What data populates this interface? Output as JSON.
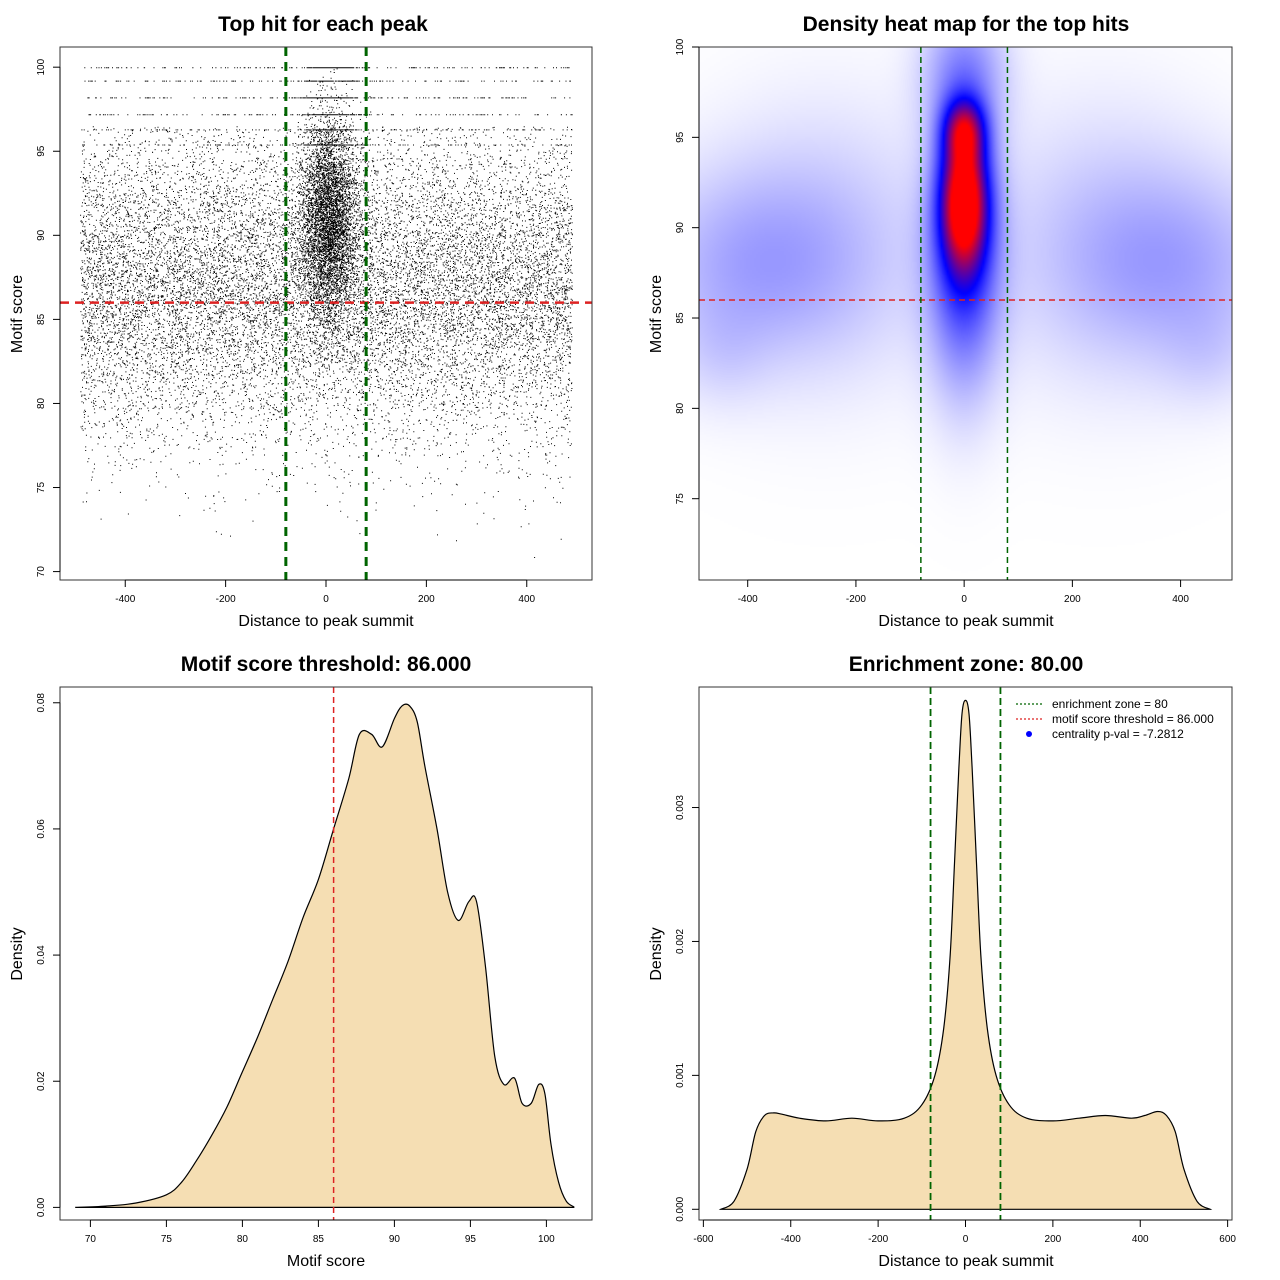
{
  "chart_data": [
    {
      "id": "scatter",
      "type": "scatter",
      "title": "Top hit for each peak",
      "xlabel": "Distance to peak summit",
      "ylabel": "Motif score",
      "xlim": [
        -530,
        530
      ],
      "ylim": [
        69.5,
        101.2
      ],
      "xticks": [
        -400,
        -200,
        0,
        200,
        400
      ],
      "yticks": [
        70,
        75,
        80,
        85,
        90,
        95,
        100
      ],
      "threshold_y": 86,
      "zone_x": [
        -80,
        80
      ],
      "threshold_color": "#dd2222",
      "zone_color": "#006400",
      "point_color": "#000000",
      "points": {
        "n_background": 16000,
        "background_x_range": [
          -490,
          490
        ],
        "n_central": 6000,
        "central_x_center": 5,
        "central_x_spread": 28,
        "score_levels": [
          100,
          99.2,
          98.2,
          97.2,
          96.3,
          95.4
        ]
      }
    },
    {
      "id": "heatmap",
      "type": "heatmap",
      "title": "Density heat map for the top hits",
      "xlabel": "Distance to peak summit",
      "ylabel": "Motif score",
      "xlim": [
        -490,
        495
      ],
      "ylim": [
        70.5,
        100
      ],
      "xticks": [
        -400,
        -200,
        0,
        200,
        400
      ],
      "yticks": [
        75,
        80,
        85,
        90,
        95,
        100
      ],
      "threshold_y": 86,
      "zone_x": [
        -80,
        80
      ],
      "threshold_color": "#dd2222",
      "zone_color": "#006400",
      "colors": [
        "#ffffff",
        "#0000ff",
        "#ff0000"
      ],
      "blobs": [
        {
          "x": 0,
          "y": 91.5,
          "sx": 30,
          "sy": 2.6,
          "w": 1.0
        },
        {
          "x": 0,
          "y": 95.4,
          "sx": 26,
          "sy": 1.2,
          "w": 0.55
        },
        {
          "x": 0,
          "y": 88,
          "sx": 45,
          "sy": 4.5,
          "w": 0.35
        },
        {
          "x": 0,
          "y": 98.5,
          "sx": 50,
          "sy": 2.5,
          "w": 0.2
        },
        {
          "x": -400,
          "y": 88,
          "sx": 130,
          "sy": 3.5,
          "w": 0.12
        },
        {
          "x": 400,
          "y": 88,
          "sx": 130,
          "sy": 3.5,
          "w": 0.12
        },
        {
          "x": -250,
          "y": 89,
          "sx": 140,
          "sy": 5,
          "w": 0.08
        },
        {
          "x": 250,
          "y": 89,
          "sx": 140,
          "sy": 5,
          "w": 0.08
        },
        {
          "x": -450,
          "y": 83,
          "sx": 60,
          "sy": 2,
          "w": 0.04
        },
        {
          "x": 450,
          "y": 83,
          "sx": 60,
          "sy": 2,
          "w": 0.04
        }
      ]
    },
    {
      "id": "score-density",
      "type": "area",
      "title": "Motif score threshold: 86.000",
      "xlabel": "Motif score",
      "ylabel": "Density",
      "xlim": [
        68,
        103
      ],
      "ylim": [
        -0.002,
        0.0825
      ],
      "xticks": [
        70,
        75,
        80,
        85,
        90,
        95,
        100
      ],
      "yticks": [
        0.0,
        0.02,
        0.04,
        0.06,
        0.08
      ],
      "ytick_labels": [
        "0.00",
        "0.02",
        "0.04",
        "0.06",
        "0.08"
      ],
      "threshold_x": 86,
      "threshold_color": "#dd2222",
      "fill_color": "#f5deb3",
      "x": [
        69,
        71,
        73,
        75,
        76,
        77,
        78,
        79,
        80,
        81,
        82,
        83,
        84,
        85,
        86,
        87,
        87.7,
        88.5,
        89.2,
        90,
        90.5,
        91,
        91.5,
        92,
        92.8,
        93.5,
        94.2,
        94.9,
        95.4,
        96,
        96.6,
        97.2,
        97.9,
        98.4,
        99,
        99.5,
        99.9,
        100.3,
        100.8,
        101.3,
        101.8
      ],
      "y": [
        0.0,
        0.0002,
        0.0007,
        0.002,
        0.004,
        0.0075,
        0.0115,
        0.016,
        0.0215,
        0.027,
        0.033,
        0.039,
        0.046,
        0.052,
        0.06,
        0.068,
        0.075,
        0.075,
        0.073,
        0.0775,
        0.0795,
        0.0795,
        0.077,
        0.07,
        0.06,
        0.05,
        0.0455,
        0.0485,
        0.0485,
        0.038,
        0.024,
        0.0195,
        0.0205,
        0.0165,
        0.0165,
        0.0195,
        0.018,
        0.01,
        0.004,
        0.001,
        0.0001
      ]
    },
    {
      "id": "distance-density",
      "type": "area",
      "title": "Enrichment zone: 80.00",
      "xlabel": "Distance to peak summit",
      "ylabel": "Density",
      "xlim": [
        -610,
        610
      ],
      "ylim": [
        -8e-05,
        0.0039
      ],
      "xticks": [
        -600,
        -400,
        -200,
        0,
        200,
        400,
        600
      ],
      "yticks": [
        0.0,
        0.001,
        0.002,
        0.003
      ],
      "ytick_labels": [
        "0.000",
        "0.001",
        "0.002",
        "0.003"
      ],
      "zone_x": [
        -80,
        80
      ],
      "zone_color": "#006400",
      "fill_color": "#f5deb3",
      "x": [
        -560,
        -530,
        -500,
        -480,
        -460,
        -440,
        -420,
        -380,
        -320,
        -260,
        -200,
        -140,
        -100,
        -70,
        -50,
        -35,
        -25,
        -15,
        -8,
        0,
        8,
        15,
        25,
        35,
        50,
        70,
        100,
        140,
        200,
        260,
        320,
        380,
        410,
        440,
        460,
        480,
        500,
        530,
        560
      ],
      "y": [
        0.0,
        6e-05,
        0.0003,
        0.00058,
        0.0007,
        0.00072,
        0.00071,
        0.00068,
        0.00066,
        0.00068,
        0.00066,
        0.00068,
        0.00078,
        0.001,
        0.00135,
        0.0019,
        0.0026,
        0.0033,
        0.0037,
        0.0038,
        0.0037,
        0.0033,
        0.0026,
        0.0019,
        0.00135,
        0.001,
        0.00078,
        0.00068,
        0.00066,
        0.00068,
        0.0007,
        0.00068,
        0.0007,
        0.00073,
        0.0007,
        0.00058,
        0.0003,
        6e-05,
        0.0
      ],
      "legend": [
        {
          "label": "enrichment zone = 80",
          "color": "#006400",
          "kind": "dotted-line"
        },
        {
          "label": "motif score threshold = 86.000",
          "color": "#dd2222",
          "kind": "dotted-line"
        },
        {
          "label": "centrality p-val = -7.2812",
          "color": "#0000ff",
          "kind": "point"
        }
      ],
      "legend_position": "top-right"
    }
  ]
}
